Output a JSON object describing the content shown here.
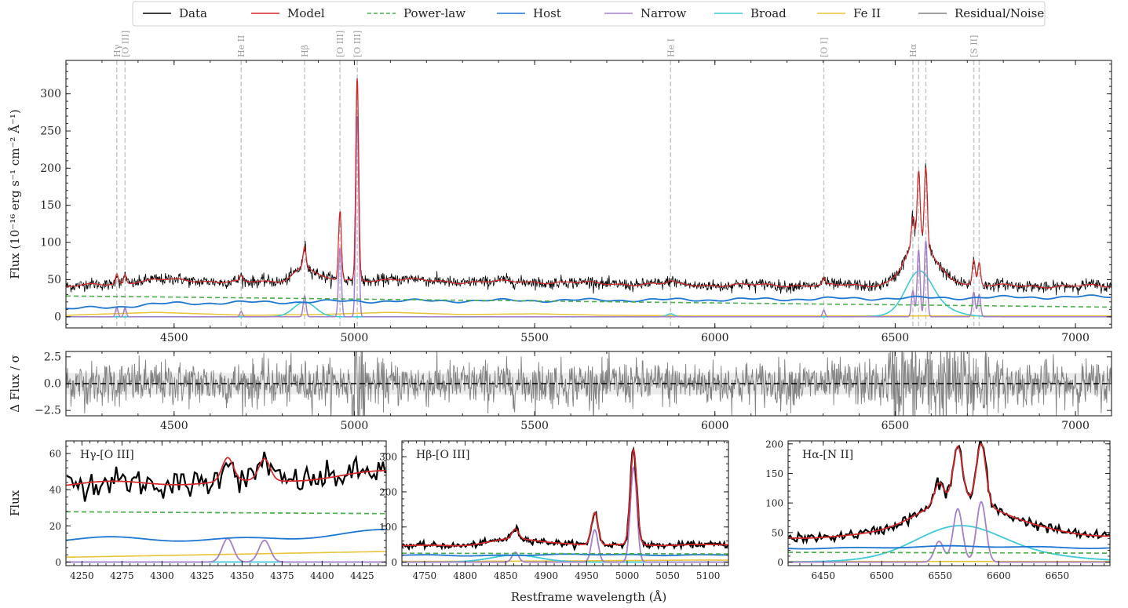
{
  "chart_data": [
    {
      "type": "line",
      "panel": "spectrum",
      "ylabel": "Flux (10⁻¹⁶ erg s⁻¹ cm⁻² Å⁻¹)",
      "xlim": [
        4200,
        7100
      ],
      "ylim": [
        -15,
        345
      ],
      "xticks": [
        4500,
        5000,
        5500,
        6000,
        6500,
        7000
      ],
      "yticks": [
        0,
        50,
        100,
        150,
        200,
        250,
        300
      ],
      "legend": {
        "placement": "top-center",
        "entries": [
          {
            "label": "Data",
            "color": "#000000",
            "dash": "solid"
          },
          {
            "label": "Model",
            "color": "#d62728",
            "dash": "solid"
          },
          {
            "label": "Power-law",
            "color": "#4cae4c",
            "dash": "dashed"
          },
          {
            "label": "Host",
            "color": "#1f77d4",
            "dash": "solid"
          },
          {
            "label": "Narrow",
            "color": "#a57fc9",
            "dash": "solid"
          },
          {
            "label": "Broad",
            "color": "#3ec9d4",
            "dash": "solid"
          },
          {
            "label": "Fe II",
            "color": "#e8c437",
            "dash": "solid"
          },
          {
            "label": "Residual/Noise",
            "color": "#808080",
            "dash": "solid"
          }
        ]
      },
      "line_markers": [
        {
          "label": "Hγ",
          "wave": 4341
        },
        {
          "label": "[O III]",
          "wave": 4364
        },
        {
          "label": "He II",
          "wave": 4686
        },
        {
          "label": "Hβ",
          "wave": 4862
        },
        {
          "label": "[O III]",
          "wave": 4960
        },
        {
          "label": "[O III]",
          "wave": 5008
        },
        {
          "label": "He I",
          "wave": 5877
        },
        {
          "label": "[O I]",
          "wave": 6302
        },
        {
          "label": "Hα",
          "wave": 6549
        },
        {
          "label": "",
          "wave": 6565
        },
        {
          "label": "",
          "wave": 6585
        },
        {
          "label": "[S II]",
          "wave": 6718
        },
        {
          "label": "",
          "wave": 6733
        }
      ],
      "series": [
        {
          "name": "Power-law",
          "x": [
            4200,
            7100
          ],
          "y": [
            28,
            13
          ]
        },
        {
          "name": "Host",
          "x": [
            4200,
            4500,
            5000,
            5500,
            6000,
            6500,
            7100
          ],
          "y": [
            10,
            18,
            21,
            22,
            23,
            25,
            27
          ]
        },
        {
          "name": "Fe II",
          "x": [
            4200,
            4450,
            4700,
            4900,
            5100,
            5300,
            5500,
            5700,
            6000,
            6500,
            7100
          ],
          "y": [
            2,
            6,
            2,
            3,
            6,
            3,
            4,
            2,
            1,
            1,
            1
          ]
        },
        {
          "name": "Broad",
          "lines": [
            {
              "center": 4862,
              "amp": 20,
              "sigma": 30
            },
            {
              "center": 6565,
              "amp": 46,
              "sigma": 35
            },
            {
              "center": 6590,
              "amp": 17,
              "sigma": 60
            },
            {
              "center": 5877,
              "amp": 4,
              "sigma": 10
            }
          ]
        },
        {
          "name": "Narrow",
          "lines": [
            {
              "center": 4341,
              "amp": 13,
              "sigma": 3.5
            },
            {
              "center": 4364,
              "amp": 12,
              "sigma": 3.5
            },
            {
              "center": 4686,
              "amp": 7,
              "sigma": 3.5
            },
            {
              "center": 4862,
              "amp": 28,
              "sigma": 4
            },
            {
              "center": 4960,
              "amp": 92,
              "sigma": 4
            },
            {
              "center": 5008,
              "amp": 270,
              "sigma": 4
            },
            {
              "center": 6302,
              "amp": 9,
              "sigma": 3.5
            },
            {
              "center": 6549,
              "amp": 35,
              "sigma": 4
            },
            {
              "center": 6565,
              "amp": 90,
              "sigma": 4
            },
            {
              "center": 6585,
              "amp": 102,
              "sigma": 4
            },
            {
              "center": 6718,
              "amp": 33,
              "sigma": 4
            },
            {
              "center": 6733,
              "amp": 30,
              "sigma": 4
            }
          ]
        },
        {
          "name": "Model",
          "derived": "sum of Power-law, Host, Fe II, Broad, Narrow",
          "peaks": {
            "4862": 88,
            "4960": 144,
            "5008": 330,
            "6565": 186,
            "6585": 197
          }
        },
        {
          "name": "Data",
          "derived": "Model plus noise",
          "y_at_5008": 330
        }
      ]
    },
    {
      "type": "line",
      "panel": "residual",
      "ylabel": "Δ Flux / σ",
      "xlim": [
        4200,
        7100
      ],
      "ylim": [
        -3.0,
        3.0
      ],
      "xticks": [
        4500,
        5000,
        5500,
        6000,
        6500,
        7000
      ],
      "yticks": [
        2.5,
        0.0,
        -2.5
      ],
      "ytick_labels": [
        "2.5",
        "0.0",
        "−2.5"
      ],
      "band": [
        -1,
        1
      ],
      "zero_line": 0,
      "series": [
        {
          "name": "Residual/Noise",
          "derived": "scatter about 0 with amplitude ~1"
        }
      ]
    },
    {
      "type": "line",
      "panel": "zoom",
      "label": "Hγ-[O III]",
      "ylabel": "Flux",
      "xlim": [
        4240,
        4440
      ],
      "ylim": [
        -2,
        67
      ],
      "xticks": [
        4250,
        4275,
        4300,
        4325,
        4350,
        4375,
        4400,
        4425
      ],
      "yticks": [
        0,
        20,
        40,
        60
      ]
    },
    {
      "type": "line",
      "panel": "zoom",
      "label": "Hβ-[O III]",
      "xlim": [
        4722,
        5125
      ],
      "ylim": [
        -10,
        345
      ],
      "xticks": [
        4750,
        4800,
        4850,
        4900,
        4950,
        5000,
        5050,
        5100
      ],
      "yticks": [
        0,
        100,
        200,
        300
      ]
    },
    {
      "type": "line",
      "panel": "zoom",
      "label": "Hα-[N II]",
      "xlim": [
        6420,
        6695
      ],
      "ylim": [
        -6,
        205
      ],
      "xticks": [
        6450,
        6500,
        6550,
        6600,
        6650
      ],
      "yticks": [
        0,
        50,
        100,
        150,
        200
      ]
    }
  ],
  "xlabel": "Restframe wavelength (Å)"
}
